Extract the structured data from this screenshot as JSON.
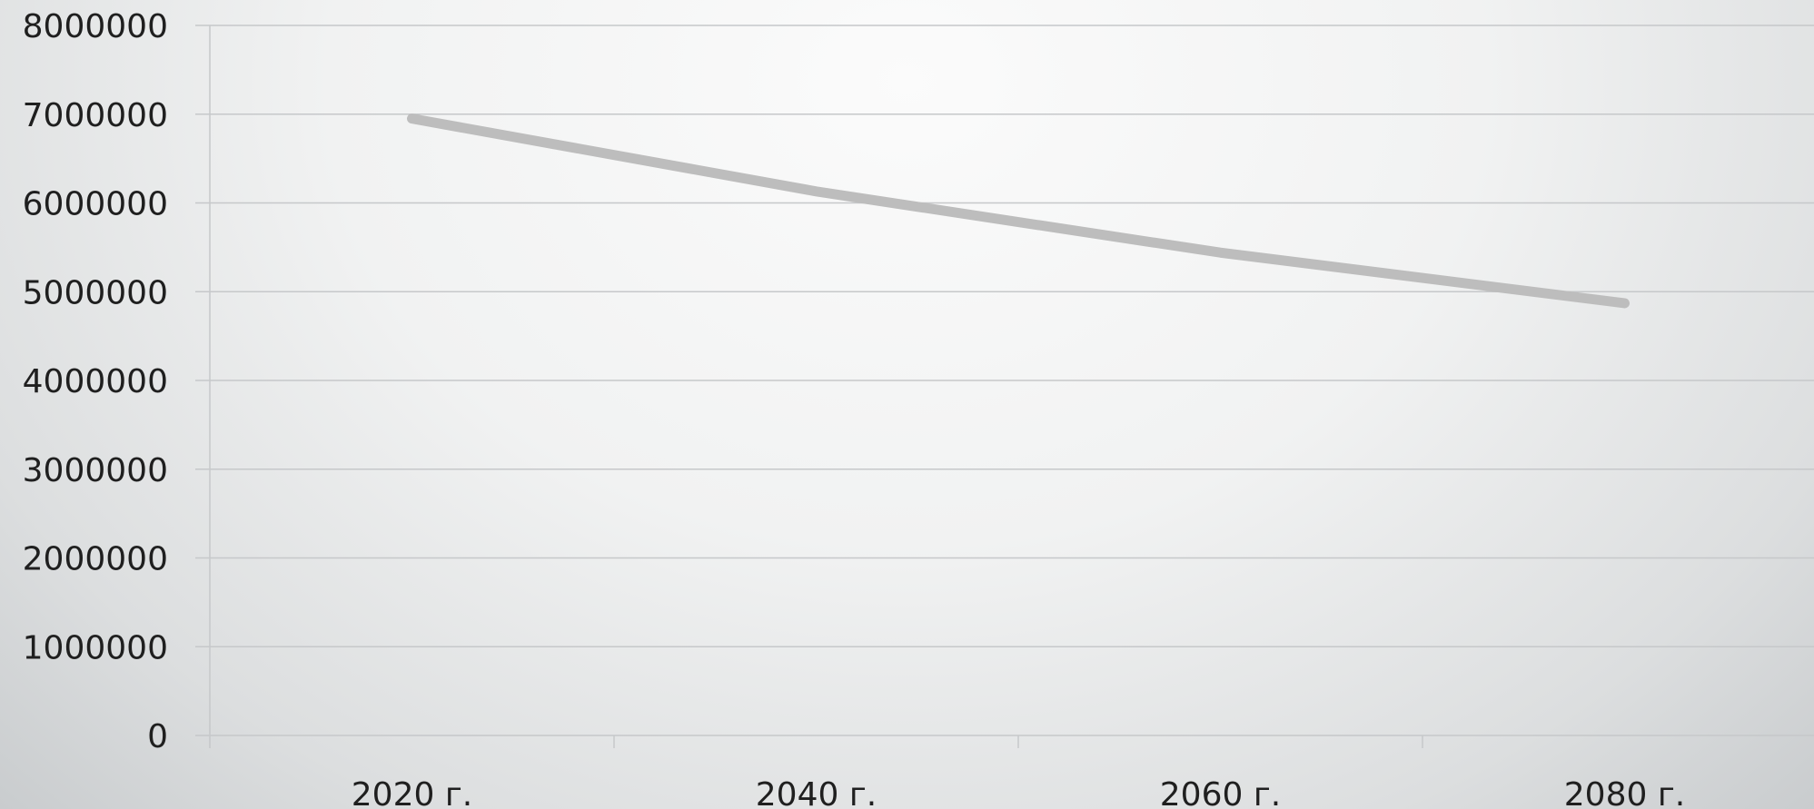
{
  "chart_data": {
    "type": "line",
    "categories": [
      "2020 г.",
      "2040 г.",
      "2060 г.",
      "2080 г."
    ],
    "series": [
      {
        "values": [
          6950000,
          6130000,
          5440000,
          4870000
        ],
        "color": "#bdbdbd"
      }
    ],
    "ylim": [
      0,
      8000000
    ],
    "yticks": [
      "0",
      "1000000",
      "2000000",
      "3000000",
      "4000000",
      "5000000",
      "6000000",
      "7000000",
      "8000000"
    ],
    "grid": true,
    "legend": "none"
  }
}
